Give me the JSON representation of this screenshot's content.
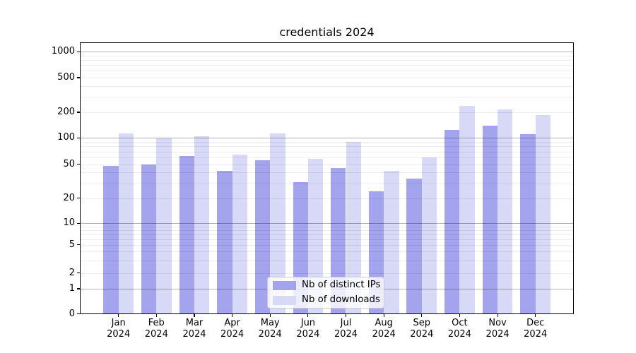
{
  "chart_data": {
    "type": "bar",
    "title": "credentials 2024",
    "months": [
      "Jan",
      "Feb",
      "Mar",
      "Apr",
      "May",
      "Jun",
      "Jul",
      "Aug",
      "Sep",
      "Oct",
      "Nov",
      "Dec"
    ],
    "year_label": "2024",
    "series": [
      {
        "name": "Nb of distinct IPs",
        "color": "#a3a3ee",
        "values": [
          48,
          50,
          62,
          42,
          56,
          31,
          45,
          24,
          34,
          125,
          138,
          110
        ]
      },
      {
        "name": "Nb of downloads",
        "color": "#d8d8f7",
        "values": [
          112,
          98,
          105,
          65,
          112,
          58,
          90,
          42,
          60,
          235,
          215,
          185
        ]
      }
    ],
    "yticks": [
      0,
      1,
      2,
      5,
      10,
      20,
      50,
      100,
      200,
      500,
      1000
    ],
    "ylim": [
      0,
      1285
    ],
    "yscale": "log-like with custom ticks (0,1,2,5,...,1000)",
    "grid": "horizontal; dark lines at 1,10,100,1000; faint minor lines between",
    "legend_position": "lower center"
  }
}
